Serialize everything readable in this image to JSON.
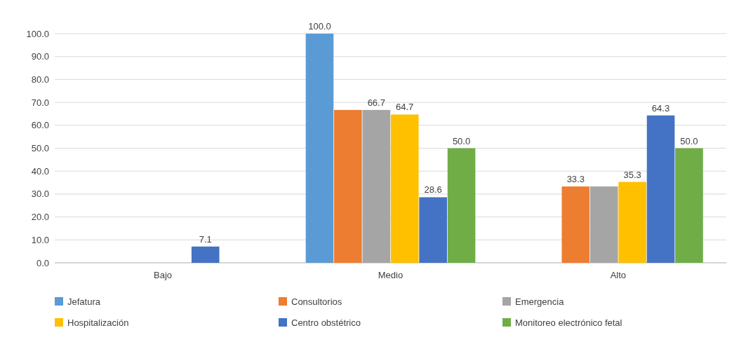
{
  "chart_data": {
    "type": "bar",
    "categories": [
      "Bajo",
      "Medio",
      "Alto"
    ],
    "series": [
      {
        "name": "Jefatura",
        "color": "#5b9bd5",
        "values": [
          0,
          100,
          0
        ],
        "value_labels": [
          null,
          "100.0",
          null
        ]
      },
      {
        "name": "Consultorios",
        "color": "#ed7d31",
        "values": [
          0,
          66.7,
          33.3
        ],
        "value_labels": [
          null,
          null,
          "33.3"
        ]
      },
      {
        "name": "Emergencia",
        "color": "#a5a5a5",
        "values": [
          0,
          66.7,
          33.3
        ],
        "value_labels": [
          null,
          "66.7",
          null
        ]
      },
      {
        "name": "Hospitalización",
        "color": "#ffc000",
        "values": [
          0,
          64.7,
          35.3
        ],
        "value_labels": [
          null,
          "64.7",
          "35.3"
        ]
      },
      {
        "name": "Centro obstétrico",
        "color": "#4472c4",
        "values": [
          7.1,
          28.6,
          64.3
        ],
        "value_labels": [
          "7.1",
          "28.6",
          "64.3"
        ]
      },
      {
        "name": "Monitoreo electrónico fetal",
        "color": "#70ad47",
        "values": [
          0,
          50,
          50
        ],
        "value_labels": [
          null,
          "50.0",
          "50.0"
        ]
      }
    ],
    "ylim": [
      0,
      100
    ],
    "yticks": [
      {
        "value": 0,
        "label": "0.0"
      },
      {
        "value": 10,
        "label": "10.0"
      },
      {
        "value": 20,
        "label": "20.0"
      },
      {
        "value": 30,
        "label": "30.0"
      },
      {
        "value": 40,
        "label": "40.0"
      },
      {
        "value": 50,
        "label": "50.0"
      },
      {
        "value": 60,
        "label": "60.0"
      },
      {
        "value": 70,
        "label": "70.0"
      },
      {
        "value": 80,
        "label": "80.0"
      },
      {
        "value": 90,
        "label": "90.0"
      },
      {
        "value": 100,
        "label": "100.0"
      }
    ],
    "grid": "y",
    "legend": "bottom"
  }
}
